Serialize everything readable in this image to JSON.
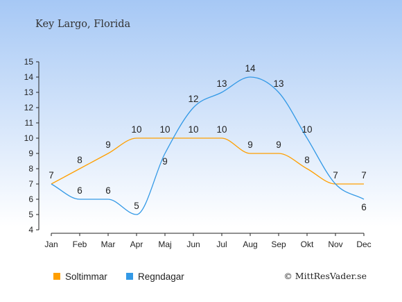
{
  "chart_data": {
    "type": "line",
    "title": "Key Largo, Florida",
    "categories": [
      "Jan",
      "Feb",
      "Mar",
      "Apr",
      "Maj",
      "Jun",
      "Jul",
      "Aug",
      "Sep",
      "Okt",
      "Nov",
      "Dec"
    ],
    "series": [
      {
        "name": "Soltimmar",
        "color": "#ff9f00",
        "values": [
          7,
          8,
          9,
          10,
          10,
          10,
          10,
          9,
          9,
          8,
          7,
          7
        ]
      },
      {
        "name": "Regndagar",
        "color": "#3399e6",
        "values": [
          7,
          6,
          6,
          5,
          9,
          12,
          13,
          14,
          13,
          10,
          7,
          6
        ]
      }
    ],
    "ylim": [
      4,
      15
    ],
    "yticks": [
      4,
      5,
      6,
      7,
      8,
      9,
      10,
      11,
      12,
      13,
      14,
      15
    ],
    "grid": false,
    "legend_position": "bottom-left",
    "background": {
      "top": "#a6c8f5",
      "bottom": "#ffffff"
    }
  },
  "credit": "© MittResVader.se"
}
